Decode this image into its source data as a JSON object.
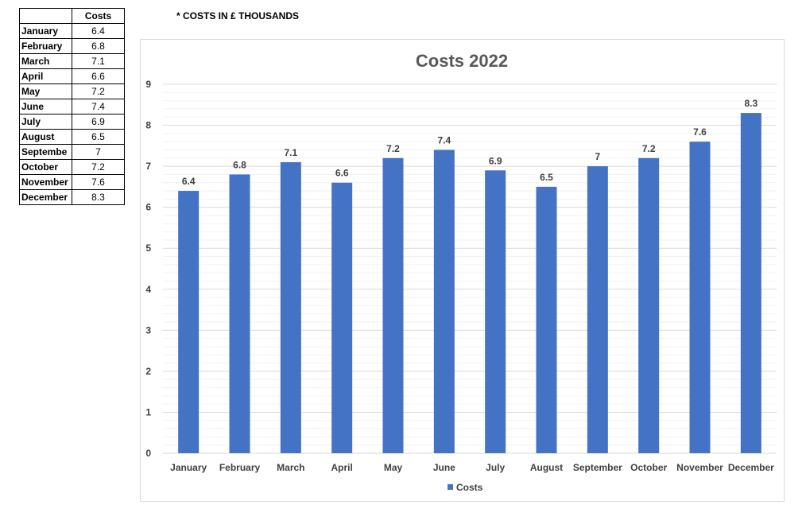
{
  "note": "* COSTS IN £ THOUSANDS",
  "table": {
    "header": [
      "",
      "Costs"
    ],
    "rows": [
      [
        "January",
        "6.4"
      ],
      [
        "February",
        "6.8"
      ],
      [
        "March",
        "7.1"
      ],
      [
        "April",
        "6.6"
      ],
      [
        "May",
        "7.2"
      ],
      [
        "June",
        "7.4"
      ],
      [
        "July",
        "6.9"
      ],
      [
        "August",
        "6.5"
      ],
      [
        "Septembe",
        "7"
      ],
      [
        "October",
        "7.2"
      ],
      [
        "November",
        "7.6"
      ],
      [
        "December",
        "8.3"
      ]
    ]
  },
  "chart_data": {
    "type": "bar",
    "title": "Costs 2022",
    "categories": [
      "January",
      "February",
      "March",
      "April",
      "May",
      "June",
      "July",
      "August",
      "September",
      "October",
      "November",
      "December"
    ],
    "series": [
      {
        "name": "Costs",
        "values": [
          6.4,
          6.8,
          7.1,
          6.6,
          7.2,
          7.4,
          6.9,
          6.5,
          7,
          7.2,
          7.6,
          8.3
        ],
        "color": "#4472c4"
      }
    ],
    "data_labels": [
      "6.4",
      "6.8",
      "7.1",
      "6.6",
      "7.2",
      "7.4",
      "6.9",
      "6.5",
      "7",
      "7.2",
      "7.6",
      "8.3"
    ],
    "ylim": [
      0,
      9
    ],
    "yticks": [
      "0",
      "1",
      "2",
      "3",
      "4",
      "5",
      "6",
      "7",
      "8",
      "9"
    ],
    "xlabel": "",
    "ylabel": "",
    "grid": true,
    "legend": "bottom"
  }
}
